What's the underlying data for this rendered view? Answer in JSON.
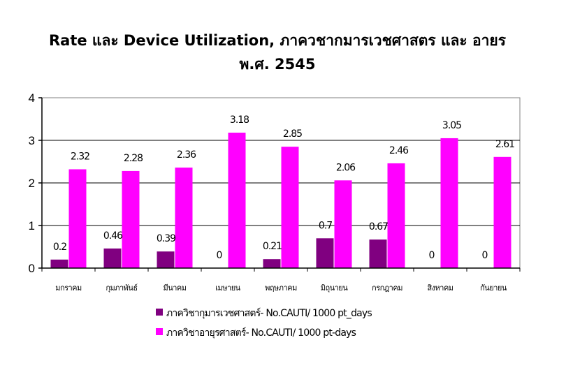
{
  "chart_data": {
    "type": "bar",
    "title_line1": "Rate และ Device Utilization, ภาควชากมารเวชศาสตร      และ อายร",
    "title_line2": "พ.ศ. 2545",
    "categories": [
      "มกราคม",
      "กุมภาพันธ์",
      "มีนาคม",
      "เมษายน",
      "พฤษภาคม",
      "มิถุนายน",
      "กรกฎาคม",
      "สิงหาคม",
      "กันยายน"
    ],
    "series": [
      {
        "name": "ภาควิชากุมารเวชศาสตร์- No.CAUTI/ 1000 pt_days",
        "color": "#800080",
        "values": [
          0.2,
          0.46,
          0.39,
          0,
          0.21,
          0.7,
          0.67,
          0,
          0
        ],
        "labels": [
          "0.2",
          "0.46",
          "0.39",
          "0",
          "0.21",
          "0.7",
          "0.67",
          "0",
          "0"
        ]
      },
      {
        "name": "ภาควิชาอายุรศาสตร์- No.CAUTI/ 1000 pt-days",
        "color": "#FF00FF",
        "values": [
          2.32,
          2.28,
          2.36,
          3.18,
          2.85,
          2.06,
          2.46,
          3.05,
          2.61
        ],
        "labels": [
          "2.32",
          "2.28",
          "2.36",
          "3.18",
          "2.85",
          "2.06",
          "2.46",
          "3.05",
          "2.61"
        ]
      }
    ],
    "yticks": [
      "0",
      "1",
      "2",
      "3",
      "4"
    ],
    "ylim": [
      0,
      4
    ],
    "grid": true,
    "legend_position": "bottom"
  }
}
